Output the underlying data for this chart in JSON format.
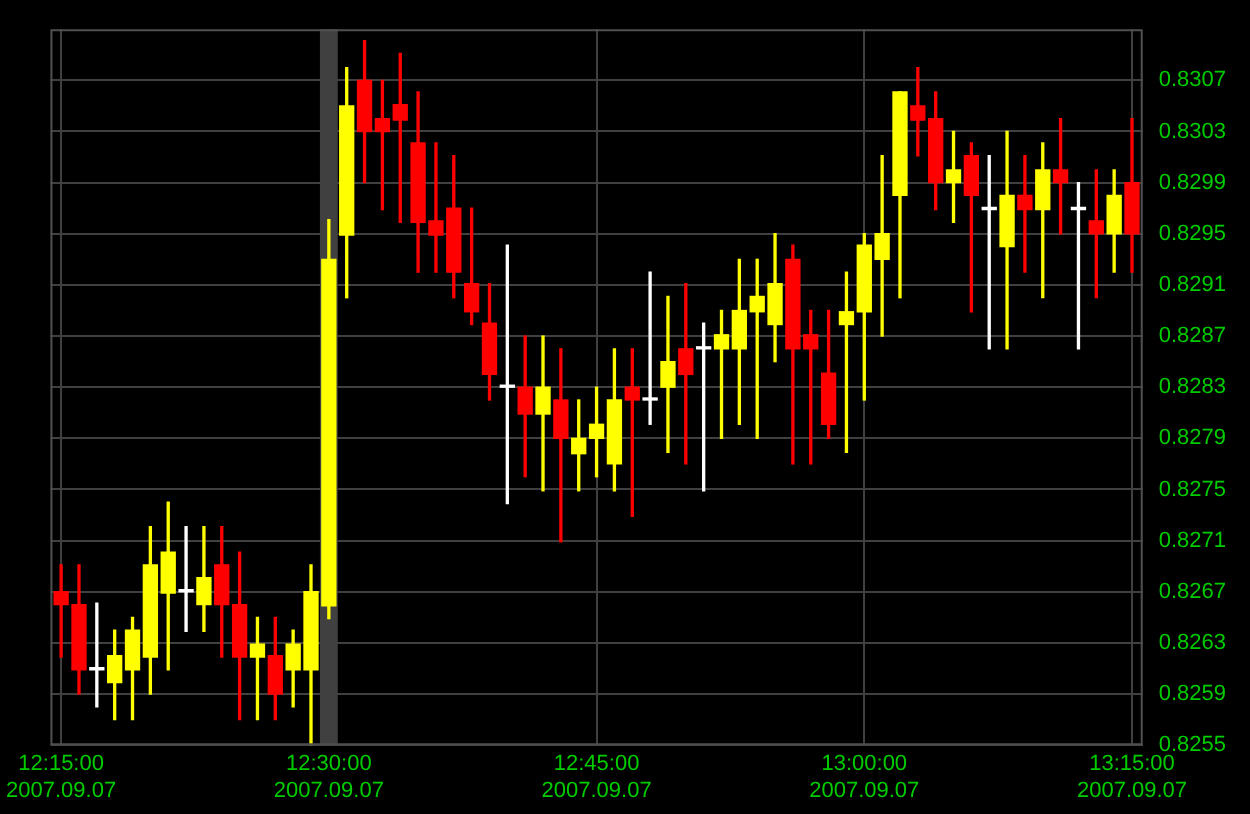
{
  "chart_data": {
    "type": "candlestick",
    "x": [
      "2007-09-07T12:15",
      "2007-09-07T12:16",
      "2007-09-07T12:17",
      "2007-09-07T12:18",
      "2007-09-07T12:19",
      "2007-09-07T12:20",
      "2007-09-07T12:21",
      "2007-09-07T12:22",
      "2007-09-07T12:23",
      "2007-09-07T12:24",
      "2007-09-07T12:25",
      "2007-09-07T12:26",
      "2007-09-07T12:27",
      "2007-09-07T12:28",
      "2007-09-07T12:29",
      "2007-09-07T12:30",
      "2007-09-07T12:31",
      "2007-09-07T12:32",
      "2007-09-07T12:33",
      "2007-09-07T12:34",
      "2007-09-07T12:35",
      "2007-09-07T12:36",
      "2007-09-07T12:37",
      "2007-09-07T12:38",
      "2007-09-07T12:39",
      "2007-09-07T12:40",
      "2007-09-07T12:41",
      "2007-09-07T12:42",
      "2007-09-07T12:43",
      "2007-09-07T12:44",
      "2007-09-07T12:45",
      "2007-09-07T12:46",
      "2007-09-07T12:47",
      "2007-09-07T12:48",
      "2007-09-07T12:49",
      "2007-09-07T12:50",
      "2007-09-07T12:51",
      "2007-09-07T12:52",
      "2007-09-07T12:53",
      "2007-09-07T12:54",
      "2007-09-07T12:55",
      "2007-09-07T12:56",
      "2007-09-07T12:57",
      "2007-09-07T12:58",
      "2007-09-07T12:59",
      "2007-09-07T13:00",
      "2007-09-07T13:01",
      "2007-09-07T13:02",
      "2007-09-07T13:03",
      "2007-09-07T13:04",
      "2007-09-07T13:05",
      "2007-09-07T13:06",
      "2007-09-07T13:07",
      "2007-09-07T13:08",
      "2007-09-07T13:09",
      "2007-09-07T13:10",
      "2007-09-07T13:11",
      "2007-09-07T13:12",
      "2007-09-07T13:13",
      "2007-09-07T13:14",
      "2007-09-07T13:15"
    ],
    "ohlc": [
      [
        0.8267,
        0.82691,
        0.82619,
        0.8266
      ],
      [
        0.8266,
        0.82691,
        0.8259,
        0.82609
      ],
      [
        0.82609,
        0.82661,
        0.8258,
        0.82609
      ],
      [
        0.82599,
        0.8264,
        0.8257,
        0.8262
      ],
      [
        0.82609,
        0.8265,
        0.8257,
        0.8264
      ],
      [
        0.82619,
        0.82721,
        0.8259,
        0.82691
      ],
      [
        0.82669,
        0.8274,
        0.82609,
        0.82701
      ],
      [
        0.8267,
        0.82721,
        0.82639,
        0.8267
      ],
      [
        0.8266,
        0.82721,
        0.82639,
        0.82681
      ],
      [
        0.82691,
        0.82721,
        0.82619,
        0.8266
      ],
      [
        0.8266,
        0.82701,
        0.8257,
        0.82619
      ],
      [
        0.82619,
        0.8265,
        0.8257,
        0.82629
      ],
      [
        0.8262,
        0.8265,
        0.8257,
        0.8259
      ],
      [
        0.82609,
        0.8264,
        0.8258,
        0.82629
      ],
      [
        0.82609,
        0.82691,
        0.8255,
        0.8267
      ],
      [
        0.82659,
        0.82961,
        0.82649,
        0.8293
      ],
      [
        0.82949,
        0.8308,
        0.829,
        0.8305
      ],
      [
        0.8307,
        0.83101,
        0.8299,
        0.8303
      ],
      [
        0.8304,
        0.8307,
        0.82969,
        0.8303
      ],
      [
        0.83051,
        0.83091,
        0.82959,
        0.83039
      ],
      [
        0.83021,
        0.83061,
        0.8292,
        0.82959
      ],
      [
        0.8296,
        0.83021,
        0.8292,
        0.82949
      ],
      [
        0.8297,
        0.83011,
        0.829,
        0.8292
      ],
      [
        0.82911,
        0.8297,
        0.82879,
        0.82889
      ],
      [
        0.8288,
        0.82911,
        0.8282,
        0.8284
      ],
      [
        0.8283,
        0.82941,
        0.82739,
        0.8283
      ],
      [
        0.8283,
        0.8287,
        0.8276,
        0.82809
      ],
      [
        0.82809,
        0.8287,
        0.82749,
        0.8283
      ],
      [
        0.8282,
        0.8286,
        0.82709,
        0.8279
      ],
      [
        0.82778,
        0.8282,
        0.82749,
        0.8279
      ],
      [
        0.8279,
        0.8283,
        0.8276,
        0.82801
      ],
      [
        0.8277,
        0.8286,
        0.82749,
        0.8282
      ],
      [
        0.8283,
        0.8286,
        0.82729,
        0.8282
      ],
      [
        0.8282,
        0.8292,
        0.82801,
        0.8282
      ],
      [
        0.8283,
        0.82901,
        0.82779,
        0.8285
      ],
      [
        0.8286,
        0.82911,
        0.8277,
        0.8284
      ],
      [
        0.8286,
        0.8288,
        0.82749,
        0.8286
      ],
      [
        0.8286,
        0.8289,
        0.8279,
        0.82871
      ],
      [
        0.8286,
        0.8293,
        0.82801,
        0.8289
      ],
      [
        0.82889,
        0.8293,
        0.8279,
        0.82901
      ],
      [
        0.82879,
        0.8295,
        0.8285,
        0.82911
      ],
      [
        0.8293,
        0.82941,
        0.8277,
        0.8286
      ],
      [
        0.82871,
        0.8289,
        0.8277,
        0.8286
      ],
      [
        0.82841,
        0.8289,
        0.8279,
        0.82801
      ],
      [
        0.82879,
        0.8292,
        0.82779,
        0.82889
      ],
      [
        0.82889,
        0.8295,
        0.8282,
        0.82941
      ],
      [
        0.8293,
        0.83011,
        0.8287,
        0.8295
      ],
      [
        0.8298,
        0.83061,
        0.829,
        0.83061
      ],
      [
        0.8305,
        0.8308,
        0.83011,
        0.83039
      ],
      [
        0.8304,
        0.83061,
        0.82969,
        0.8299
      ],
      [
        0.8299,
        0.8303,
        0.82959,
        0.83
      ],
      [
        0.83011,
        0.83021,
        0.82889,
        0.8298
      ],
      [
        0.82969,
        0.83011,
        0.8286,
        0.82969
      ],
      [
        0.8294,
        0.8303,
        0.8286,
        0.8298
      ],
      [
        0.8298,
        0.83011,
        0.8292,
        0.82969
      ],
      [
        0.82969,
        0.83021,
        0.829,
        0.83
      ],
      [
        0.83,
        0.8304,
        0.8295,
        0.8299
      ],
      [
        0.82969,
        0.8299,
        0.8286,
        0.82969
      ],
      [
        0.8296,
        0.83,
        0.829,
        0.8295
      ],
      [
        0.8295,
        0.83,
        0.8292,
        0.8298
      ],
      [
        0.8299,
        0.8304,
        0.8292,
        0.8295
      ]
    ],
    "colors": [
      "#ff0000",
      "#ff0000",
      "#ffffff",
      "#ffff00",
      "#ffff00",
      "#ffff00",
      "#ffff00",
      "#ffffff",
      "#ffff00",
      "#ff0000",
      "#ff0000",
      "#ffff00",
      "#ff0000",
      "#ffff00",
      "#ffff00",
      "#ffff00",
      "#ffff00",
      "#ff0000",
      "#ff0000",
      "#ff0000",
      "#ff0000",
      "#ff0000",
      "#ff0000",
      "#ff0000",
      "#ff0000",
      "#ffffff",
      "#ff0000",
      "#ffff00",
      "#ff0000",
      "#ffff00",
      "#ffff00",
      "#ffff00",
      "#ff0000",
      "#ffffff",
      "#ffff00",
      "#ff0000",
      "#ffffff",
      "#ffff00",
      "#ffff00",
      "#ffff00",
      "#ffff00",
      "#ff0000",
      "#ff0000",
      "#ff0000",
      "#ffff00",
      "#ffff00",
      "#ffff00",
      "#ffff00",
      "#ff0000",
      "#ff0000",
      "#ffff00",
      "#ff0000",
      "#ffffff",
      "#ffff00",
      "#ff0000",
      "#ffff00",
      "#ff0000",
      "#ffffff",
      "#ff0000",
      "#ffff00",
      "#ff0000"
    ],
    "xlim": [
      "2007-09-07T12:14:24",
      "2007-09-07T13:15:36"
    ],
    "xticks": [
      {
        "value": "2007-09-07T12:15",
        "label": "12:15:00\n2007.09.07"
      },
      {
        "value": "2007-09-07T12:30",
        "label": "12:30:00\n2007.09.07"
      },
      {
        "value": "2007-09-07T12:45",
        "label": "12:45:00\n2007.09.07"
      },
      {
        "value": "2007-09-07T13:00",
        "label": "13:00:00\n2007.09.07"
      },
      {
        "value": "2007-09-07T13:15",
        "label": "13:15:00\n2007.09.07"
      }
    ],
    "ylim": [
      0.8255,
      0.8311
    ],
    "yticks": [
      0.8255,
      0.8259,
      0.8263,
      0.8267,
      0.8271,
      0.8275,
      0.8279,
      0.8283,
      0.8287,
      0.8291,
      0.8295,
      0.8299,
      0.8303,
      0.8307
    ],
    "bands": [
      {
        "axis": "x",
        "from": "2007-09-07T12:29:30",
        "to": "2007-09-07T12:30:30",
        "color": "#404040"
      }
    ],
    "grid": true
  }
}
